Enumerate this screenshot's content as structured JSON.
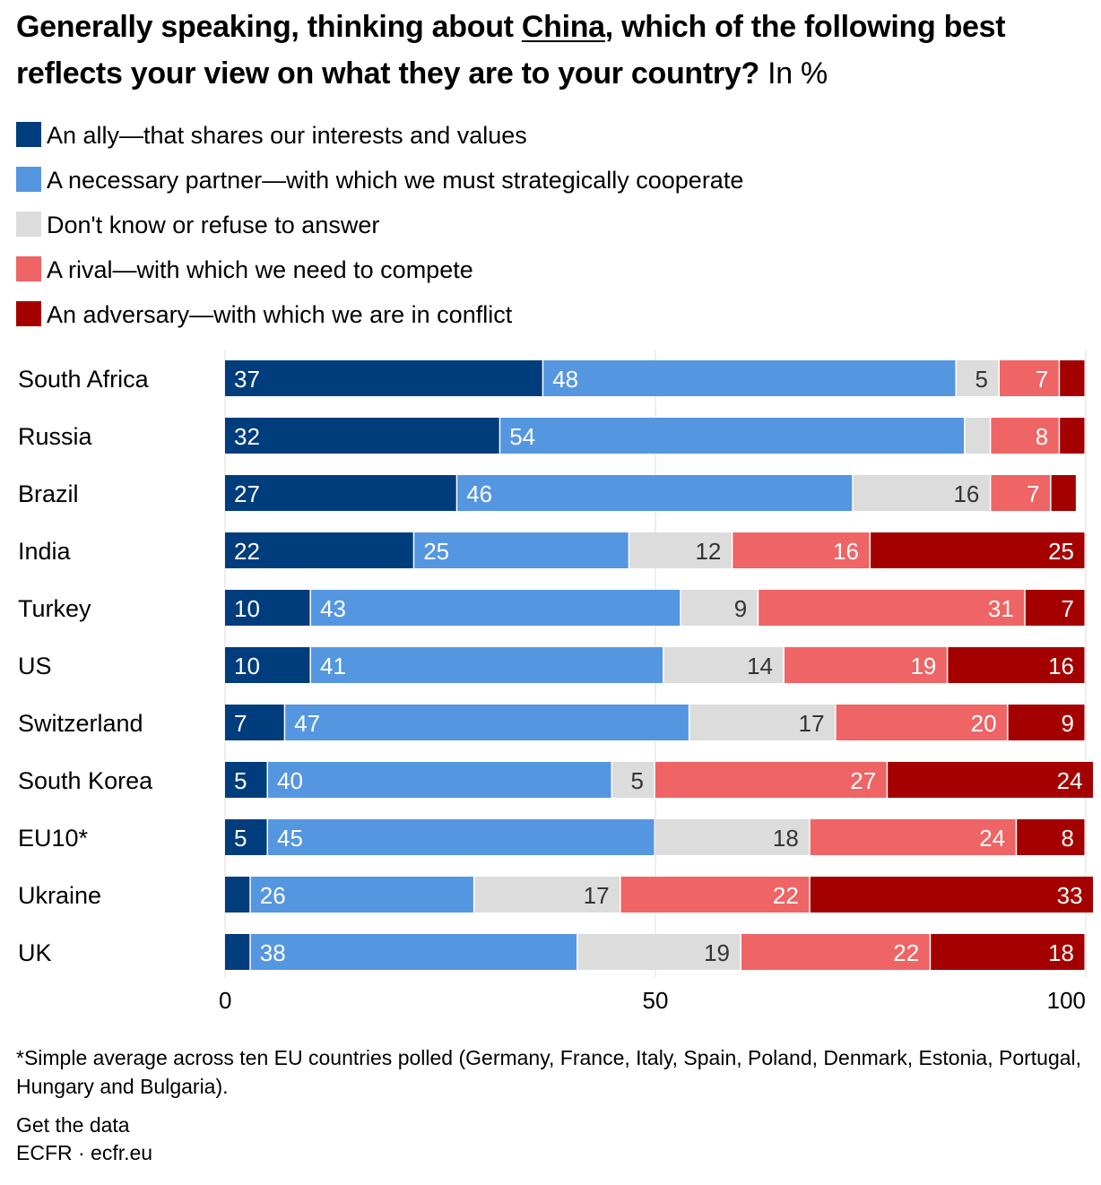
{
  "header": {
    "title_part1": "Generally speaking, thinking about ",
    "title_highlight": "China",
    "title_part2": ", which of the following best reflects your view on what they are to your country?",
    "title_unit": " In %"
  },
  "colors": {
    "ally": "#003d7c",
    "partner": "#5596e0",
    "dont_know": "#dcdcdc",
    "rival": "#ef6465",
    "adversary": "#a50000",
    "grid": "#dddddd"
  },
  "chart_data": {
    "type": "bar",
    "orientation": "horizontal",
    "stacked": true,
    "title": "Generally speaking, thinking about China, which of the following best reflects your view on what they are to your country? In %",
    "categories": [
      "South Africa",
      "Russia",
      "Brazil",
      "India",
      "Turkey",
      "US",
      "Switzerland",
      "South Korea",
      "EU10*",
      "Ukraine",
      "UK"
    ],
    "series": [
      {
        "key": "ally",
        "name": "An ally—that shares our interests and values",
        "values": [
          37,
          32,
          27,
          22,
          10,
          10,
          7,
          5,
          5,
          3,
          3
        ],
        "labels": [
          "37",
          "32",
          "27",
          "22",
          "10",
          "10",
          "7",
          "5",
          "5",
          "",
          ""
        ]
      },
      {
        "key": "partner",
        "name": "A necessary partner—with which we must strategically cooperate",
        "values": [
          48,
          54,
          46,
          25,
          43,
          41,
          47,
          40,
          45,
          26,
          38
        ],
        "labels": [
          "48",
          "54",
          "46",
          "25",
          "43",
          "41",
          "47",
          "40",
          "45",
          "26",
          "38"
        ]
      },
      {
        "key": "dont_know",
        "name": "Don't know or refuse to answer",
        "values": [
          5,
          3,
          16,
          12,
          9,
          14,
          17,
          5,
          18,
          17,
          19
        ],
        "labels": [
          "5",
          "",
          "16",
          "12",
          "9",
          "14",
          "17",
          "5",
          "18",
          "17",
          "19"
        ]
      },
      {
        "key": "rival",
        "name": "A rival—with which we need to compete",
        "values": [
          7,
          8,
          7,
          16,
          31,
          19,
          20,
          27,
          24,
          22,
          22
        ],
        "labels": [
          "7",
          "8",
          "7",
          "16",
          "31",
          "19",
          "20",
          "27",
          "24",
          "22",
          "22"
        ]
      },
      {
        "key": "adversary",
        "name": "An adversary—with which we are in conflict",
        "values": [
          3,
          3,
          3,
          25,
          7,
          16,
          9,
          24,
          8,
          33,
          18
        ],
        "labels": [
          "",
          "",
          "",
          "25",
          "7",
          "16",
          "9",
          "24",
          "8",
          "33",
          "18"
        ]
      }
    ],
    "xlim": [
      0,
      100
    ],
    "xticks": [
      0,
      50,
      100
    ],
    "xlabel": "",
    "ylabel": "",
    "legend_position": "top",
    "grid": true
  },
  "footer": {
    "footnote": "*Simple average across ten EU countries polled (Germany, France, Italy, Spain, Poland, Denmark, Estonia, Portugal, Hungary and Bulgaria).",
    "get_data": "Get the data",
    "source": "ECFR · ecfr.eu"
  }
}
